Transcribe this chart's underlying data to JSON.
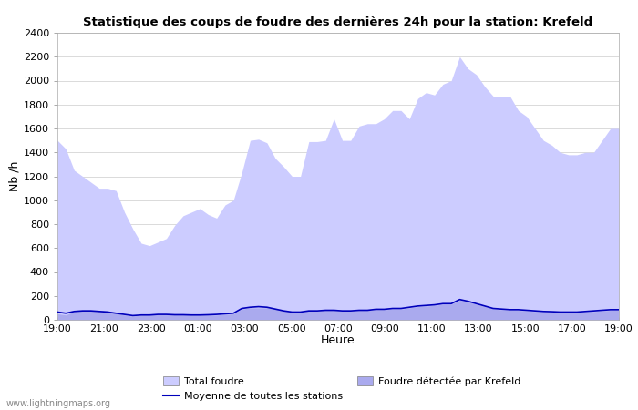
{
  "title": "Statistique des coups de foudre des dernières 24h pour la station: Krefeld",
  "xlabel": "Heure",
  "ylabel": "Nb /h",
  "watermark": "www.lightningmaps.org",
  "xlim": [
    0,
    24
  ],
  "ylim": [
    0,
    2400
  ],
  "yticks": [
    0,
    200,
    400,
    600,
    800,
    1000,
    1200,
    1400,
    1600,
    1800,
    2000,
    2200,
    2400
  ],
  "xtick_labels": [
    "19:00",
    "21:00",
    "23:00",
    "01:00",
    "03:00",
    "05:00",
    "07:00",
    "09:00",
    "11:00",
    "13:00",
    "15:00",
    "17:00",
    "19:00"
  ],
  "xtick_positions": [
    0,
    2,
    4,
    6,
    8,
    10,
    12,
    14,
    16,
    18,
    20,
    22,
    24
  ],
  "color_total": "#ccccff",
  "color_krefeld": "#aaaaee",
  "color_mean": "#0000bb",
  "total_foudre": [
    1500,
    1430,
    1250,
    1200,
    1150,
    1100,
    1100,
    1080,
    900,
    760,
    640,
    620,
    650,
    680,
    790,
    870,
    900,
    930,
    880,
    850,
    960,
    1000,
    1230,
    1500,
    1510,
    1480,
    1350,
    1280,
    1200,
    1200,
    1490,
    1490,
    1500,
    1680,
    1500,
    1500,
    1620,
    1640,
    1640,
    1680,
    1750,
    1750,
    1680,
    1850,
    1900,
    1880,
    1970,
    2000,
    2200,
    2100,
    2050,
    1950,
    1870,
    1870,
    1870,
    1750,
    1700,
    1600,
    1500,
    1460,
    1400,
    1380,
    1380,
    1400,
    1400,
    1500,
    1600,
    1600
  ],
  "krefeld_foudre": [
    50,
    40,
    70,
    75,
    80,
    80,
    75,
    60,
    40,
    30,
    40,
    40,
    45,
    45,
    45,
    45,
    40,
    40,
    40,
    40,
    45,
    50,
    90,
    100,
    100,
    100,
    90,
    80,
    65,
    65,
    75,
    75,
    80,
    80,
    75,
    75,
    80,
    80,
    85,
    85,
    90,
    90,
    100,
    110,
    115,
    120,
    130,
    130,
    165,
    150,
    130,
    110,
    90,
    85,
    80,
    80,
    75,
    70,
    65,
    65,
    60,
    60,
    60,
    65,
    70,
    75,
    80,
    80
  ],
  "mean_line": [
    65,
    55,
    70,
    75,
    75,
    70,
    65,
    55,
    45,
    35,
    40,
    40,
    45,
    45,
    42,
    42,
    40,
    40,
    42,
    45,
    50,
    55,
    95,
    105,
    110,
    105,
    90,
    75,
    65,
    65,
    75,
    75,
    80,
    80,
    75,
    75,
    80,
    80,
    88,
    88,
    95,
    95,
    105,
    115,
    120,
    125,
    135,
    135,
    170,
    155,
    135,
    115,
    95,
    90,
    85,
    85,
    80,
    75,
    70,
    68,
    65,
    65,
    65,
    70,
    75,
    80,
    85,
    85
  ],
  "background_color": "#ffffff",
  "grid_color": "#cccccc"
}
